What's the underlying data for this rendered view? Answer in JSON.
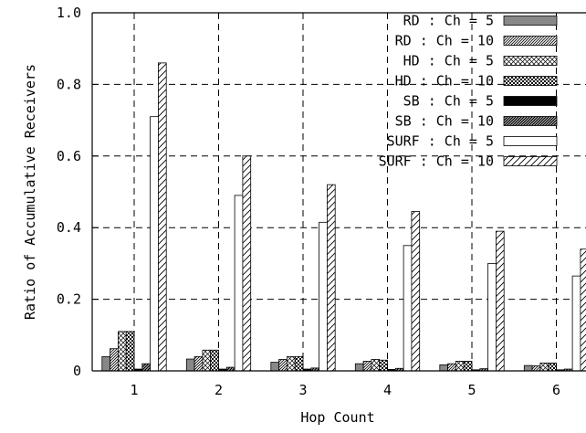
{
  "chart_data": {
    "type": "bar",
    "title": "",
    "xlabel": "Hop Count",
    "ylabel": "Ratio of Accumulative Receivers",
    "ylim": [
      0,
      1.0
    ],
    "yticks": [
      "0",
      "0.2",
      "0.4",
      "0.6",
      "0.8",
      "1.0"
    ],
    "categories": [
      "1",
      "2",
      "3",
      "4",
      "5",
      "6"
    ],
    "grid": true,
    "legend_position": "top-right",
    "series": [
      {
        "name": "RD : Ch = 5",
        "pattern": "solid-gray",
        "values": [
          0.04,
          0.033,
          0.024,
          0.02,
          0.017,
          0.015
        ]
      },
      {
        "name": "RD : Ch = 10",
        "pattern": "diag-dense",
        "values": [
          0.062,
          0.04,
          0.032,
          0.027,
          0.02,
          0.014
        ]
      },
      {
        "name": "HD : Ch = 5",
        "pattern": "crosshatch-light",
        "values": [
          0.11,
          0.058,
          0.04,
          0.032,
          0.027,
          0.022
        ]
      },
      {
        "name": "HD : Ch = 10",
        "pattern": "checker-dark",
        "values": [
          0.11,
          0.058,
          0.04,
          0.03,
          0.027,
          0.022
        ]
      },
      {
        "name": "SB : Ch = 5",
        "pattern": "solid-black",
        "values": [
          0.005,
          0.005,
          0.005,
          0.004,
          0.003,
          0.003
        ]
      },
      {
        "name": "SB : Ch = 10",
        "pattern": "diag-dark",
        "values": [
          0.02,
          0.01,
          0.008,
          0.007,
          0.006,
          0.005
        ]
      },
      {
        "name": "SURF : Ch = 5",
        "pattern": "white",
        "values": [
          0.71,
          0.49,
          0.415,
          0.35,
          0.3,
          0.265
        ]
      },
      {
        "name": "SURF : Ch = 10",
        "pattern": "diag-sparse",
        "values": [
          0.86,
          0.6,
          0.52,
          0.445,
          0.39,
          0.34
        ]
      }
    ]
  },
  "colors": {
    "background": "#ffffff",
    "axis": "#000000",
    "grid": "#000000",
    "solid_gray": "#888888",
    "solid_black": "#000000"
  }
}
